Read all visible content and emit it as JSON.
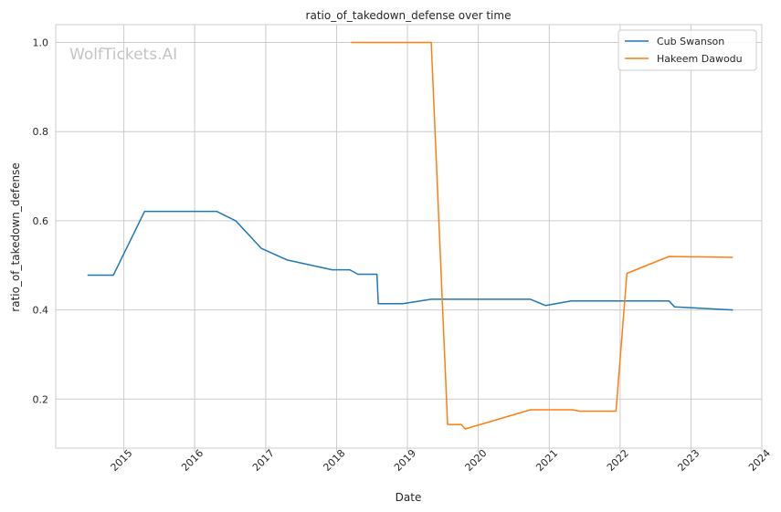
{
  "chart_data": {
    "type": "line",
    "title": "ratio_of_takedown_defense over time",
    "xlabel": "Date",
    "ylabel": "ratio_of_takedown_defense",
    "watermark": "WolfTickets.AI",
    "x_ticks": [
      "2015",
      "2016",
      "2017",
      "2018",
      "2019",
      "2020",
      "2021",
      "2022",
      "2023",
      "2024"
    ],
    "y_ticks": [
      "0.2",
      "0.4",
      "0.6",
      "0.8",
      "1.0"
    ],
    "xlim": [
      "2014-01-15",
      "2024-01-01"
    ],
    "ylim": [
      0.09,
      1.04
    ],
    "grid": true,
    "legend_position": "top-right",
    "series": [
      {
        "name": "Cub Swanson",
        "color": "#1f77b4",
        "points": [
          [
            "2014-06-28",
            0.478
          ],
          [
            "2014-11-08",
            0.478
          ],
          [
            "2015-04-18",
            0.621
          ],
          [
            "2016-04-23",
            0.621
          ],
          [
            "2016-07-30",
            0.6
          ],
          [
            "2016-12-10",
            0.538
          ],
          [
            "2017-04-22",
            0.512
          ],
          [
            "2017-12-09",
            0.49
          ],
          [
            "2018-03-10",
            0.49
          ],
          [
            "2018-04-21",
            0.48
          ],
          [
            "2018-07-28",
            0.48
          ],
          [
            "2018-08-04",
            0.414
          ],
          [
            "2018-12-08",
            0.414
          ],
          [
            "2019-05-04",
            0.424
          ],
          [
            "2020-09-26",
            0.424
          ],
          [
            "2020-12-12",
            0.41
          ],
          [
            "2021-04-24",
            0.42
          ],
          [
            "2022-09-10",
            0.42
          ],
          [
            "2022-10-08",
            0.407
          ],
          [
            "2023-08-05",
            0.4
          ]
        ]
      },
      {
        "name": "Hakeem Dawodu",
        "color": "#ff7f0e",
        "points": [
          [
            "2018-03-17",
            1.0
          ],
          [
            "2019-05-04",
            1.0
          ],
          [
            "2019-07-27",
            0.143
          ],
          [
            "2019-10-05",
            0.143
          ],
          [
            "2019-10-26",
            0.133
          ],
          [
            "2020-09-26",
            0.176
          ],
          [
            "2021-05-01",
            0.176
          ],
          [
            "2021-06-05",
            0.173
          ],
          [
            "2021-12-11",
            0.173
          ],
          [
            "2022-02-05",
            0.482
          ],
          [
            "2022-09-10",
            0.52
          ],
          [
            "2023-08-05",
            0.518
          ]
        ]
      }
    ]
  }
}
